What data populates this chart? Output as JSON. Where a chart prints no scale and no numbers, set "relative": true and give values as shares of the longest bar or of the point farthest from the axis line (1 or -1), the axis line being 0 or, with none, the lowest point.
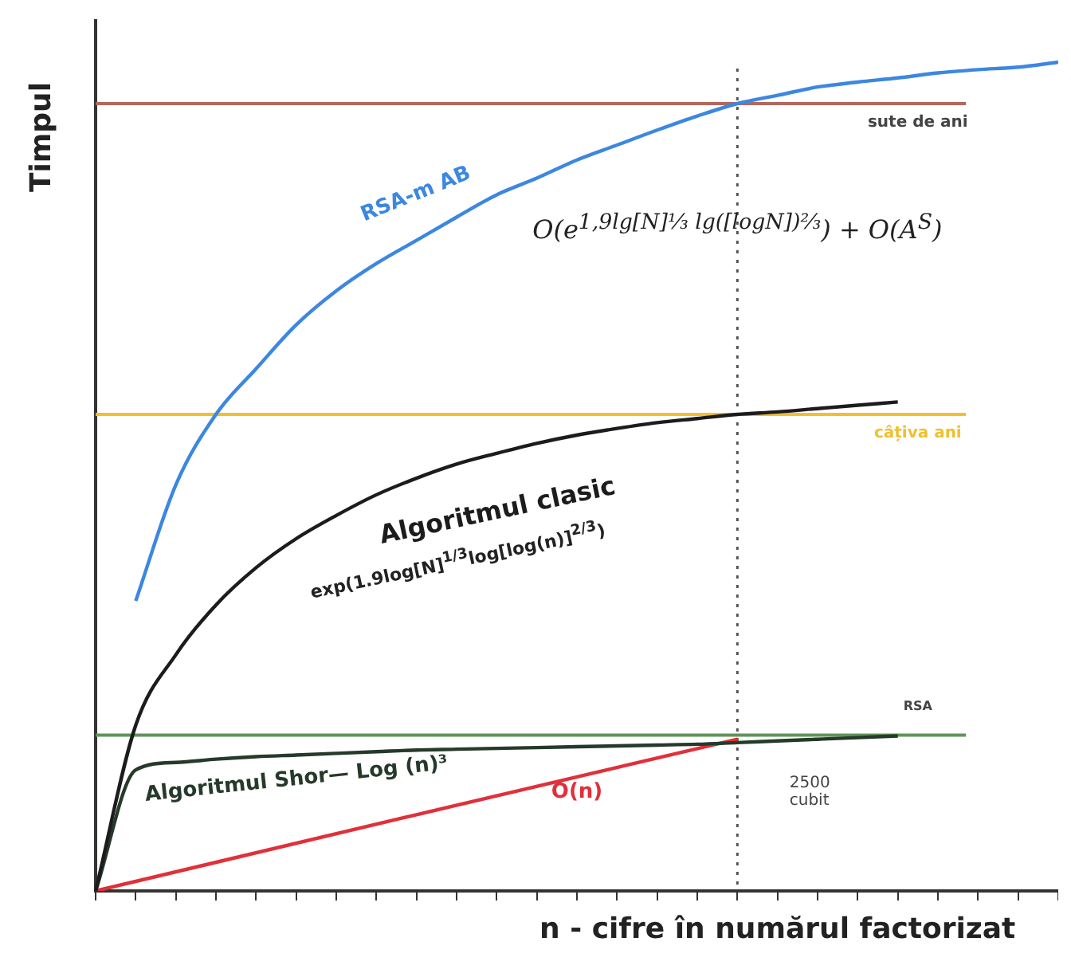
{
  "chart_data": {
    "type": "line",
    "relative": true,
    "marker": "none",
    "xlabel": "n - cifre în numărul factorizat",
    "ylabel": "Timpul",
    "categories": [
      null,
      null,
      null,
      null,
      null,
      null,
      null,
      null,
      null,
      null,
      null,
      null,
      null,
      null,
      null,
      null,
      null,
      null,
      null,
      null,
      null,
      null,
      null,
      null,
      null
    ],
    "series": [
      {
        "name": "RSA-m AB",
        "color": "#3c87e0",
        "values": [
          null,
          0.35,
          0.49,
          0.575,
          0.63,
          0.683,
          0.724,
          0.757,
          0.785,
          0.813,
          0.84,
          0.86,
          0.882,
          0.9,
          0.918,
          0.935,
          0.95,
          0.96,
          0.97,
          0.976,
          0.981,
          0.987,
          0.991,
          0.994,
          1
        ]
      },
      {
        "name": "Algoritmul clasic",
        "color": "#1c1c1c",
        "values": [
          0,
          0.2,
          0.285,
          0.345,
          0.39,
          0.425,
          0.453,
          0.478,
          0.498,
          0.515,
          0.528,
          0.54,
          0.55,
          0.558,
          0.565,
          0.57,
          0.575,
          0.578,
          0.582,
          0.586,
          0.59,
          null,
          null,
          null,
          null
        ]
      },
      {
        "name": "Algoritmul Shor— Log (n)³",
        "color": "#263a2a",
        "values": [
          0,
          0.146,
          0.155,
          0.159,
          0.162,
          0.164,
          0.166,
          0.168,
          0.17,
          0.171,
          0.172,
          0.173,
          0.174,
          0.175,
          0.176,
          0.177,
          0.179,
          0.181,
          0.183,
          0.185,
          0.187,
          null,
          null,
          null,
          null
        ]
      },
      {
        "name": "O(n)",
        "color": "#e0303a",
        "values": [
          0,
          null,
          null,
          null,
          null,
          null,
          null,
          null,
          0.092,
          null,
          null,
          null,
          null,
          null,
          null,
          null,
          0.183,
          null,
          null,
          null,
          null,
          null,
          null,
          null,
          null
        ]
      }
    ],
    "ref_lines": [
      {
        "axis": "y",
        "value": 0.95,
        "label": "sute de ani",
        "color": "#b5675c"
      },
      {
        "axis": "y",
        "value": 0.575,
        "label": "câțiva ani",
        "color": "#f0c030"
      },
      {
        "axis": "y",
        "value": 0.188,
        "label": "RSA",
        "color": "#5f9457"
      }
    ],
    "annotations": [
      "O(e$^{1,9lg[N]⅓ lg([logN])⅔}$) + O(A$^{S}$)",
      "exp(1.9log[N]$^{1/3}$log[log(n)]$^{2/3}$)",
      "2500 cubit"
    ]
  }
}
